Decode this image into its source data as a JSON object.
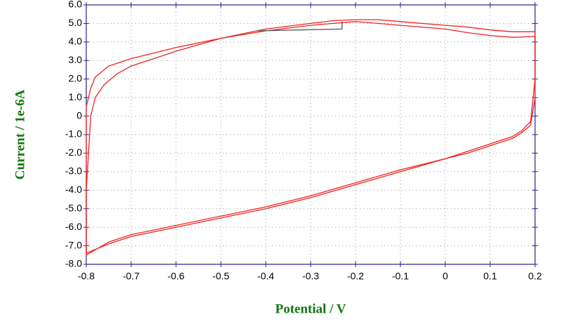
{
  "chart_data": {
    "type": "line",
    "x_label": "Potential / V",
    "y_label": "Current / 1e-6A",
    "xlim": [
      -0.8,
      0.2
    ],
    "ylim": [
      -8,
      6
    ],
    "xticks": [
      -0.8,
      -0.7,
      -0.6,
      -0.5,
      -0.4,
      -0.3,
      -0.2,
      -0.1,
      0,
      0.1,
      0.2
    ],
    "yticks": [
      {
        "value": 6,
        "label": "6.0"
      },
      {
        "value": 5,
        "label": "5.0"
      },
      {
        "value": 4,
        "label": "4.0"
      },
      {
        "value": 3,
        "label": "3.0"
      },
      {
        "value": 2,
        "label": "2.0"
      },
      {
        "value": 1,
        "label": "1.0"
      },
      0,
      {
        "value": -1,
        "label": "-1.0"
      },
      {
        "value": -2,
        "label": "-2.0"
      },
      {
        "value": -3,
        "label": "-3.0"
      },
      {
        "value": -4,
        "label": "-4.0"
      },
      {
        "value": -5,
        "label": "-5.0"
      },
      {
        "value": -6,
        "label": "-6.0"
      },
      {
        "value": -7,
        "label": "-7.0"
      },
      {
        "value": -8,
        "label": "-8.0"
      }
    ],
    "grid": true,
    "series": [
      {
        "color": "#ee2222",
        "x": [
          0.2,
          0.2,
          0.19,
          0.17,
          0.15,
          0.1,
          0.05,
          0,
          -0.1,
          -0.2,
          -0.3,
          -0.4,
          -0.5,
          -0.6,
          -0.7,
          -0.75,
          -0.8,
          -0.8,
          -0.8,
          -0.79,
          -0.78,
          -0.75,
          -0.7,
          -0.6,
          -0.5,
          -0.4,
          -0.3,
          -0.25,
          -0.2,
          -0.15,
          -0.1,
          0,
          0.05,
          0.1,
          0.15,
          0.2
        ],
        "values": [
          4.6,
          2.0,
          -0.3,
          -0.8,
          -1.1,
          -1.5,
          -1.9,
          -2.3,
          -3.0,
          -3.7,
          -4.4,
          -5.0,
          -5.5,
          -6.0,
          -6.5,
          -6.9,
          -7.4,
          -3.0,
          0.5,
          1.5,
          2.1,
          2.7,
          3.1,
          3.7,
          4.2,
          4.7,
          5.0,
          5.15,
          5.2,
          5.2,
          5.1,
          4.9,
          4.8,
          4.65,
          4.55,
          4.55
        ]
      },
      {
        "color": "#ee2222",
        "x": [
          0.2,
          0.2,
          0.19,
          0.17,
          0.15,
          0.1,
          0.05,
          0,
          -0.1,
          -0.2,
          -0.3,
          -0.4,
          -0.5,
          -0.6,
          -0.7,
          -0.75,
          -0.8,
          -0.8,
          -0.79,
          -0.78,
          -0.76,
          -0.73,
          -0.7,
          -0.6,
          -0.5,
          -0.4,
          -0.3,
          -0.25,
          -0.2,
          -0.15,
          -0.1,
          0,
          0.05,
          0.1,
          0.15,
          0.2
        ],
        "values": [
          4.3,
          1.0,
          -0.5,
          -0.9,
          -1.2,
          -1.6,
          -2.0,
          -2.3,
          -2.9,
          -3.6,
          -4.3,
          -4.9,
          -5.4,
          -5.9,
          -6.4,
          -6.8,
          -7.5,
          -4.0,
          0.0,
          1.0,
          1.7,
          2.3,
          2.7,
          3.5,
          4.2,
          4.6,
          4.9,
          5.0,
          5.1,
          5.0,
          4.9,
          4.7,
          4.5,
          4.35,
          4.25,
          4.3
        ]
      },
      {
        "color": "#555555",
        "x": [
          -0.42,
          -0.23,
          -0.23
        ],
        "values": [
          4.6,
          4.7,
          5.1
        ]
      }
    ]
  }
}
